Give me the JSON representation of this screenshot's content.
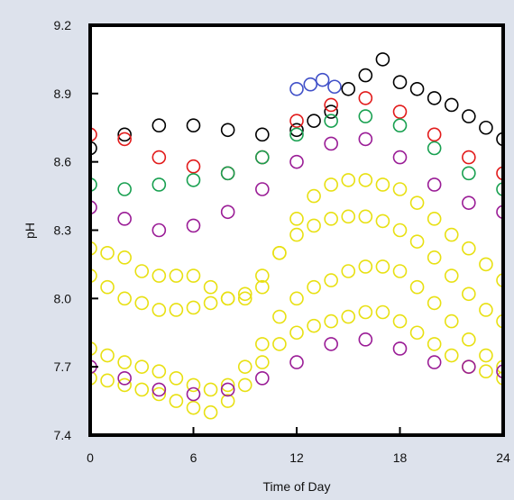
{
  "chart_data": {
    "type": "scatter",
    "title": "",
    "xlabel": "Time of Day",
    "ylabel": "pH",
    "xlim": [
      0,
      24
    ],
    "ylim": [
      7.4,
      9.2
    ],
    "xticks": [
      0,
      6,
      12,
      18,
      24
    ],
    "xtick_labels": [
      "0",
      "6",
      "12",
      "18",
      "24"
    ],
    "yticks": [
      7.4,
      7.7,
      8.0,
      8.3,
      8.6,
      8.9,
      9.2
    ],
    "ytick_labels": [
      "7.4",
      "7.7",
      "8.0",
      "8.3",
      "8.6",
      "8.9",
      "9.2"
    ],
    "grid": false,
    "legend": "none",
    "marker": "open-circle",
    "series": [
      {
        "color": "#000000",
        "x": [
          0,
          2,
          4,
          6,
          8,
          10,
          12,
          13,
          14,
          15,
          16,
          17,
          18,
          19,
          20,
          21,
          22,
          23,
          24
        ],
        "y": [
          8.66,
          8.72,
          8.76,
          8.76,
          8.74,
          8.72,
          8.74,
          8.78,
          8.82,
          8.92,
          8.98,
          9.05,
          8.95,
          8.92,
          8.88,
          8.85,
          8.8,
          8.75,
          8.7
        ]
      },
      {
        "color": "#4050c8",
        "x": [
          12,
          12.8,
          13.5,
          14.2
        ],
        "y": [
          8.92,
          8.94,
          8.96,
          8.93
        ]
      },
      {
        "color": "#e21b1b",
        "x": [
          0,
          2,
          4,
          6,
          8,
          10,
          12,
          14,
          16,
          18,
          20,
          22,
          24
        ],
        "y": [
          8.72,
          8.7,
          8.62,
          8.58,
          8.55,
          8.62,
          8.78,
          8.85,
          8.88,
          8.82,
          8.72,
          8.62,
          8.55
        ]
      },
      {
        "color": "#18a050",
        "x": [
          0,
          2,
          4,
          6,
          8,
          10,
          12,
          14,
          16,
          18,
          20,
          22,
          24
        ],
        "y": [
          8.5,
          8.48,
          8.5,
          8.52,
          8.55,
          8.62,
          8.72,
          8.78,
          8.8,
          8.76,
          8.66,
          8.55,
          8.48
        ]
      },
      {
        "color": "#9a1c96",
        "x": [
          0,
          2,
          4,
          6,
          8,
          10,
          12,
          14,
          16,
          18,
          20,
          22,
          24
        ],
        "y": [
          8.4,
          8.35,
          8.3,
          8.32,
          8.38,
          8.48,
          8.6,
          8.68,
          8.7,
          8.62,
          8.5,
          8.42,
          8.38
        ]
      },
      {
        "color": "#e8e012",
        "x": [
          0,
          1,
          2,
          3,
          4,
          5,
          6,
          7,
          8,
          9,
          10,
          11,
          12,
          13,
          14,
          15,
          16,
          17,
          18,
          19,
          20,
          21,
          22,
          23,
          24
        ],
        "y": [
          8.22,
          8.2,
          8.18,
          8.12,
          8.1,
          8.1,
          8.1,
          8.05,
          8.0,
          8.0,
          8.05,
          8.2,
          8.35,
          8.45,
          8.5,
          8.52,
          8.52,
          8.5,
          8.48,
          8.42,
          8.35,
          8.28,
          8.22,
          8.15,
          8.08
        ]
      },
      {
        "color": "#e8e012",
        "x": [
          0,
          1,
          2,
          3,
          4,
          5,
          6,
          7,
          8,
          9,
          10,
          11,
          12,
          13,
          14,
          15,
          16,
          17,
          18,
          19,
          20,
          21,
          22,
          23,
          24
        ],
        "y": [
          8.1,
          8.05,
          8.0,
          7.98,
          7.95,
          7.95,
          7.96,
          7.98,
          8.0,
          8.02,
          8.1,
          8.2,
          8.28,
          8.32,
          8.35,
          8.36,
          8.36,
          8.34,
          8.3,
          8.25,
          8.18,
          8.1,
          8.02,
          7.95,
          7.9
        ]
      },
      {
        "color": "#e8e012",
        "x": [
          0,
          1,
          2,
          3,
          4,
          5,
          6,
          7,
          8,
          9,
          10,
          11,
          12,
          13,
          14,
          15,
          16,
          17,
          18,
          19,
          20,
          21,
          22,
          23,
          24
        ],
        "y": [
          7.78,
          7.75,
          7.72,
          7.7,
          7.68,
          7.65,
          7.62,
          7.6,
          7.62,
          7.7,
          7.8,
          7.92,
          8.0,
          8.05,
          8.08,
          8.12,
          8.14,
          8.14,
          8.12,
          8.05,
          7.98,
          7.9,
          7.82,
          7.75,
          7.7
        ]
      },
      {
        "color": "#e8e012",
        "x": [
          0,
          1,
          2,
          3,
          4,
          5,
          6,
          7,
          8,
          9,
          10,
          11,
          12,
          13,
          14,
          15,
          16,
          17,
          18,
          19,
          20,
          21,
          22,
          23,
          24
        ],
        "y": [
          7.65,
          7.64,
          7.62,
          7.6,
          7.58,
          7.55,
          7.52,
          7.5,
          7.55,
          7.62,
          7.72,
          7.8,
          7.85,
          7.88,
          7.9,
          7.92,
          7.94,
          7.94,
          7.9,
          7.85,
          7.8,
          7.75,
          7.7,
          7.68,
          7.65
        ]
      },
      {
        "color": "#9a1c96",
        "x": [
          0,
          2,
          4,
          6,
          8,
          10,
          12,
          14,
          16,
          18,
          20,
          22,
          24
        ],
        "y": [
          7.7,
          7.65,
          7.6,
          7.58,
          7.6,
          7.65,
          7.72,
          7.8,
          7.82,
          7.78,
          7.72,
          7.7,
          7.68
        ]
      }
    ]
  }
}
